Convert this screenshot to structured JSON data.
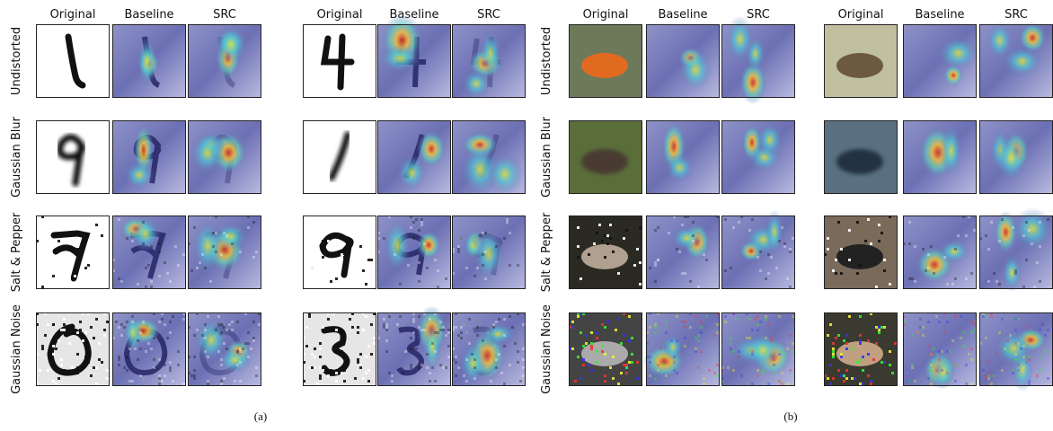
{
  "panels": [
    {
      "column_headers": [
        "Original",
        "Baseline",
        "SRC",
        "Original",
        "Baseline",
        "SRC"
      ],
      "row_labels": [
        "Undistorted",
        "Gaussian Blur",
        "Salt & Pepper",
        "Gaussian Noise"
      ],
      "caption": "(a)"
    },
    {
      "column_headers": [
        "Original",
        "Baseline",
        "SRC",
        "Original",
        "Baseline",
        "SRC"
      ],
      "row_labels": [
        "Undistorted",
        "Gaussian Blur",
        "Salt & Pepper",
        "Gaussian Noise"
      ],
      "caption": "(b)"
    }
  ]
}
